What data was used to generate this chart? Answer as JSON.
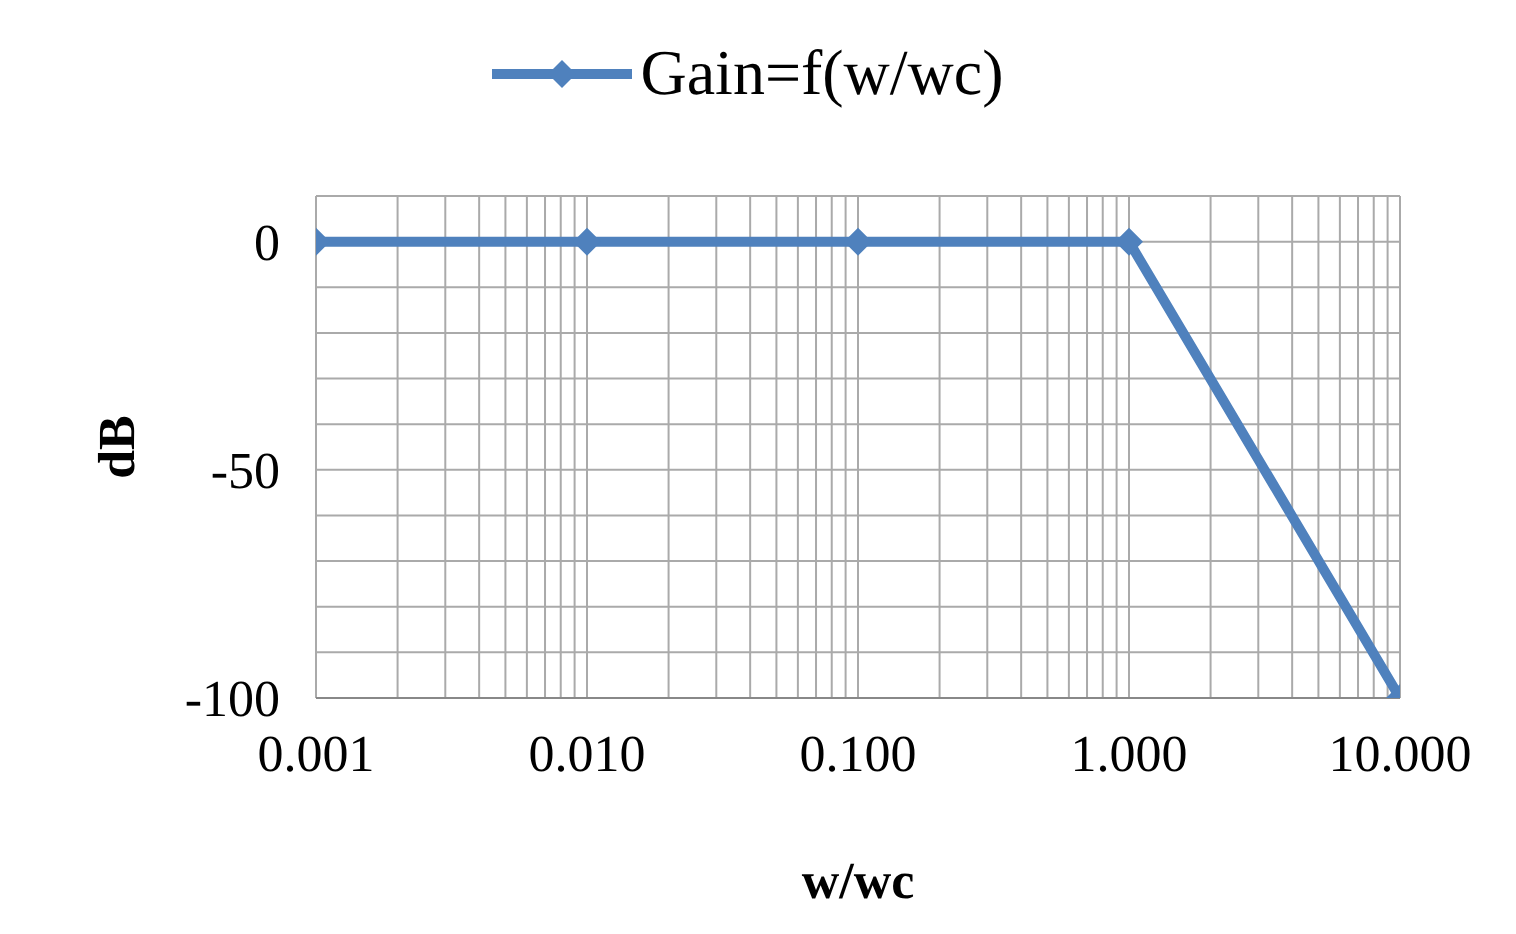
{
  "chart_data": {
    "type": "line",
    "xlabel": "w/wc",
    "ylabel": "dB",
    "log": "x",
    "x": [
      0.001,
      0.01,
      0.1,
      1,
      10
    ],
    "series": [
      {
        "name": "Gain=f(w/wc)",
        "color": "#4f81bd",
        "values": [
          0,
          0,
          0,
          0,
          -100
        ]
      }
    ],
    "xlim": [
      0.001,
      10
    ],
    "xticks": [
      {
        "value": 0.001,
        "label": "0.001"
      },
      {
        "value": 0.002,
        "label": null
      },
      {
        "value": 0.003,
        "label": null
      },
      {
        "value": 0.004,
        "label": null
      },
      {
        "value": 0.005,
        "label": null
      },
      {
        "value": 0.006,
        "label": null
      },
      {
        "value": 0.007,
        "label": null
      },
      {
        "value": 0.008,
        "label": null
      },
      {
        "value": 0.009,
        "label": null
      },
      {
        "value": 0.01,
        "label": "0.010"
      },
      {
        "value": 0.02,
        "label": null
      },
      {
        "value": 0.03,
        "label": null
      },
      {
        "value": 0.04,
        "label": null
      },
      {
        "value": 0.05,
        "label": null
      },
      {
        "value": 0.06,
        "label": null
      },
      {
        "value": 0.07,
        "label": null
      },
      {
        "value": 0.08,
        "label": null
      },
      {
        "value": 0.09,
        "label": null
      },
      {
        "value": 0.1,
        "label": "0.100"
      },
      {
        "value": 0.2,
        "label": null
      },
      {
        "value": 0.3,
        "label": null
      },
      {
        "value": 0.4,
        "label": null
      },
      {
        "value": 0.5,
        "label": null
      },
      {
        "value": 0.6,
        "label": null
      },
      {
        "value": 0.7,
        "label": null
      },
      {
        "value": 0.8,
        "label": null
      },
      {
        "value": 0.9,
        "label": null
      },
      {
        "value": 1,
        "label": "1.000"
      },
      {
        "value": 2,
        "label": null
      },
      {
        "value": 3,
        "label": null
      },
      {
        "value": 4,
        "label": null
      },
      {
        "value": 5,
        "label": null
      },
      {
        "value": 6,
        "label": null
      },
      {
        "value": 7,
        "label": null
      },
      {
        "value": 8,
        "label": null
      },
      {
        "value": 9,
        "label": null
      },
      {
        "value": 10,
        "label": "10.000"
      }
    ],
    "ylim": [
      -100,
      10
    ],
    "yticks": [
      -100,
      {
        "value": -90,
        "label": null
      },
      {
        "value": -80,
        "label": null
      },
      {
        "value": -70,
        "label": null
      },
      {
        "value": -60,
        "label": null
      },
      -50,
      {
        "value": -40,
        "label": null
      },
      {
        "value": -30,
        "label": null
      },
      {
        "value": -20,
        "label": null
      },
      {
        "value": -10,
        "label": null
      },
      0,
      {
        "value": 10,
        "label": null
      }
    ],
    "grid": true,
    "legend": "top",
    "marker": "diamond",
    "line_style": "solid"
  }
}
